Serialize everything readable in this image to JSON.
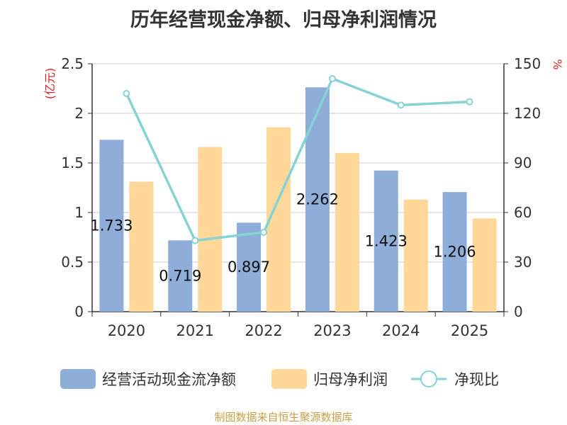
{
  "title": "历年经营现金净额、归母净利润情况",
  "footer": "制图数据来自恒生聚源数据库",
  "colors": {
    "cash_flow": "#8eadd9",
    "net_profit": "#fed799",
    "ratio": "#86d3d6",
    "axis_label": "#e02020",
    "text": "#333333",
    "grid": "#cccccc",
    "footer": "#c8a04a"
  },
  "chart_data": {
    "type": "bar",
    "categories": [
      "2020",
      "2021",
      "2022",
      "2023",
      "2024",
      "2025"
    ],
    "ylabel_left": "(亿元)",
    "ylabel_right": "%",
    "ylim_left": [
      0,
      2.5
    ],
    "ylim_right": [
      0,
      150
    ],
    "yticks_left": [
      "0",
      "0.5",
      "1",
      "1.5",
      "2",
      "2.5"
    ],
    "yticks_right": [
      "0",
      "30",
      "60",
      "90",
      "120",
      "150"
    ],
    "grid": true,
    "legend_position": "bottom",
    "series": [
      {
        "name": "经营活动现金流净额",
        "type": "bar",
        "axis": "left",
        "values": [
          1.733,
          0.719,
          0.897,
          2.262,
          1.423,
          1.206
        ],
        "labels": [
          "1.733",
          "0.719",
          "0.897",
          "2.262",
          "1.423",
          "1.206"
        ]
      },
      {
        "name": "归母净利润",
        "type": "bar",
        "axis": "left",
        "values": [
          1.31,
          1.66,
          1.86,
          1.6,
          1.13,
          0.94
        ]
      },
      {
        "name": "净现比",
        "type": "line",
        "axis": "right",
        "values": [
          132,
          43,
          48,
          141,
          125,
          127
        ]
      }
    ]
  }
}
